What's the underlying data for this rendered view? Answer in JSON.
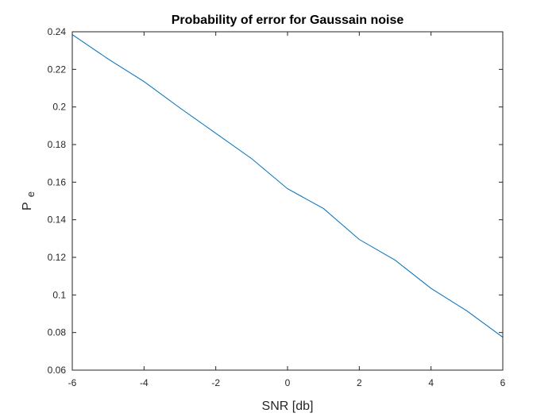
{
  "chart_data": {
    "type": "line",
    "title": "Probability of error for Gaussain noise",
    "xlabel": "SNR [db]",
    "ylabel": {
      "main": "P",
      "subscript": "e"
    },
    "xlim": [
      -6,
      6
    ],
    "ylim": [
      0.06,
      0.24
    ],
    "xticks": [
      -6,
      -4,
      -2,
      0,
      2,
      4,
      6
    ],
    "xtick_labels": [
      "-6",
      "-4",
      "-2",
      "0",
      "2",
      "4",
      "6"
    ],
    "yticks": [
      0.06,
      0.08,
      0.1,
      0.12,
      0.14,
      0.16,
      0.18,
      0.2,
      0.22,
      0.24
    ],
    "ytick_labels": [
      "0.06",
      "0.08",
      "0.1",
      "0.12",
      "0.14",
      "0.16",
      "0.18",
      "0.2",
      "0.22",
      "0.24"
    ],
    "grid": false,
    "box": true,
    "series": [
      {
        "color": "#0072bd",
        "x": [
          -6,
          -5,
          -4,
          -3,
          -2,
          -1,
          0,
          1,
          2,
          3,
          4,
          5,
          6
        ],
        "y": [
          0.2385,
          0.2255,
          0.2135,
          0.1995,
          0.186,
          0.1725,
          0.1565,
          0.146,
          0.1295,
          0.1185,
          0.1035,
          0.0915,
          0.0775
        ]
      }
    ]
  }
}
